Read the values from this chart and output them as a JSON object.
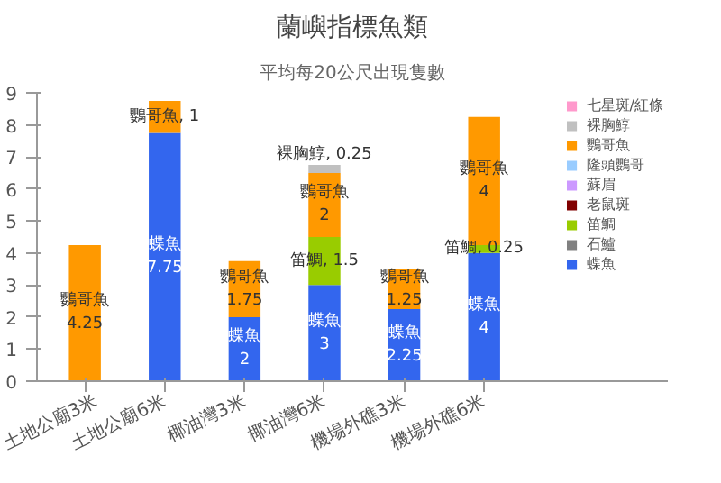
{
  "chart_data": {
    "type": "bar",
    "stacked": true,
    "title": "蘭嶼指標魚類",
    "subtitle": "平均每20公尺出現隻數",
    "categories": [
      "土地公廟3米",
      "土地公廟6米",
      "椰油灣3米",
      "椰油灣6米",
      "機場外礁3米",
      "機場外礁6米"
    ],
    "series": [
      {
        "name": "蝶魚",
        "color": "#3366ee",
        "values": [
          null,
          7.75,
          2,
          3,
          2.25,
          4
        ],
        "value_labels": [
          null,
          "蝶魚\n7.75",
          "蝶魚\n2",
          "蝶魚\n3",
          "蝶魚\n2.25",
          "蝶魚\n4"
        ]
      },
      {
        "name": "石鱸",
        "color": "#808080",
        "values": [
          null,
          null,
          null,
          null,
          null,
          null
        ]
      },
      {
        "name": "笛鯛",
        "color": "#99cc00",
        "values": [
          null,
          null,
          null,
          1.5,
          null,
          0.25
        ],
        "value_labels": [
          null,
          null,
          null,
          "笛鯛, 1.5",
          null,
          "笛鯛, 0.25"
        ]
      },
      {
        "name": "老鼠斑",
        "color": "#800000",
        "values": [
          null,
          null,
          null,
          null,
          null,
          null
        ]
      },
      {
        "name": "蘇眉",
        "color": "#cc99ff",
        "values": [
          null,
          null,
          null,
          null,
          null,
          null
        ]
      },
      {
        "name": "隆頭鸚哥",
        "color": "#99ccff",
        "values": [
          null,
          null,
          null,
          null,
          null,
          null
        ]
      },
      {
        "name": "鸚哥魚",
        "color": "#ff9900",
        "values": [
          4.25,
          1,
          1.75,
          2,
          1.25,
          4
        ],
        "value_labels": [
          "鸚哥魚\n4.25",
          "鸚哥魚, 1",
          "鸚哥魚\n1.75",
          "鸚哥魚\n2",
          "鸚哥魚\n1.25",
          "鸚哥魚\n4"
        ]
      },
      {
        "name": "裸胸鯙",
        "color": "#c0c0c0",
        "values": [
          null,
          null,
          null,
          0.25,
          null,
          null
        ],
        "value_labels": [
          null,
          null,
          null,
          "裸胸鯙, 0.25",
          null,
          null
        ]
      },
      {
        "name": "七星斑/紅條",
        "color": "#ff99cc",
        "values": [
          null,
          null,
          null,
          null,
          null,
          null
        ]
      }
    ],
    "ylim": [
      0,
      9
    ],
    "yticks": [
      0,
      1,
      2,
      3,
      4,
      5,
      6,
      7,
      8,
      9
    ],
    "grid": false,
    "legend": "right"
  }
}
